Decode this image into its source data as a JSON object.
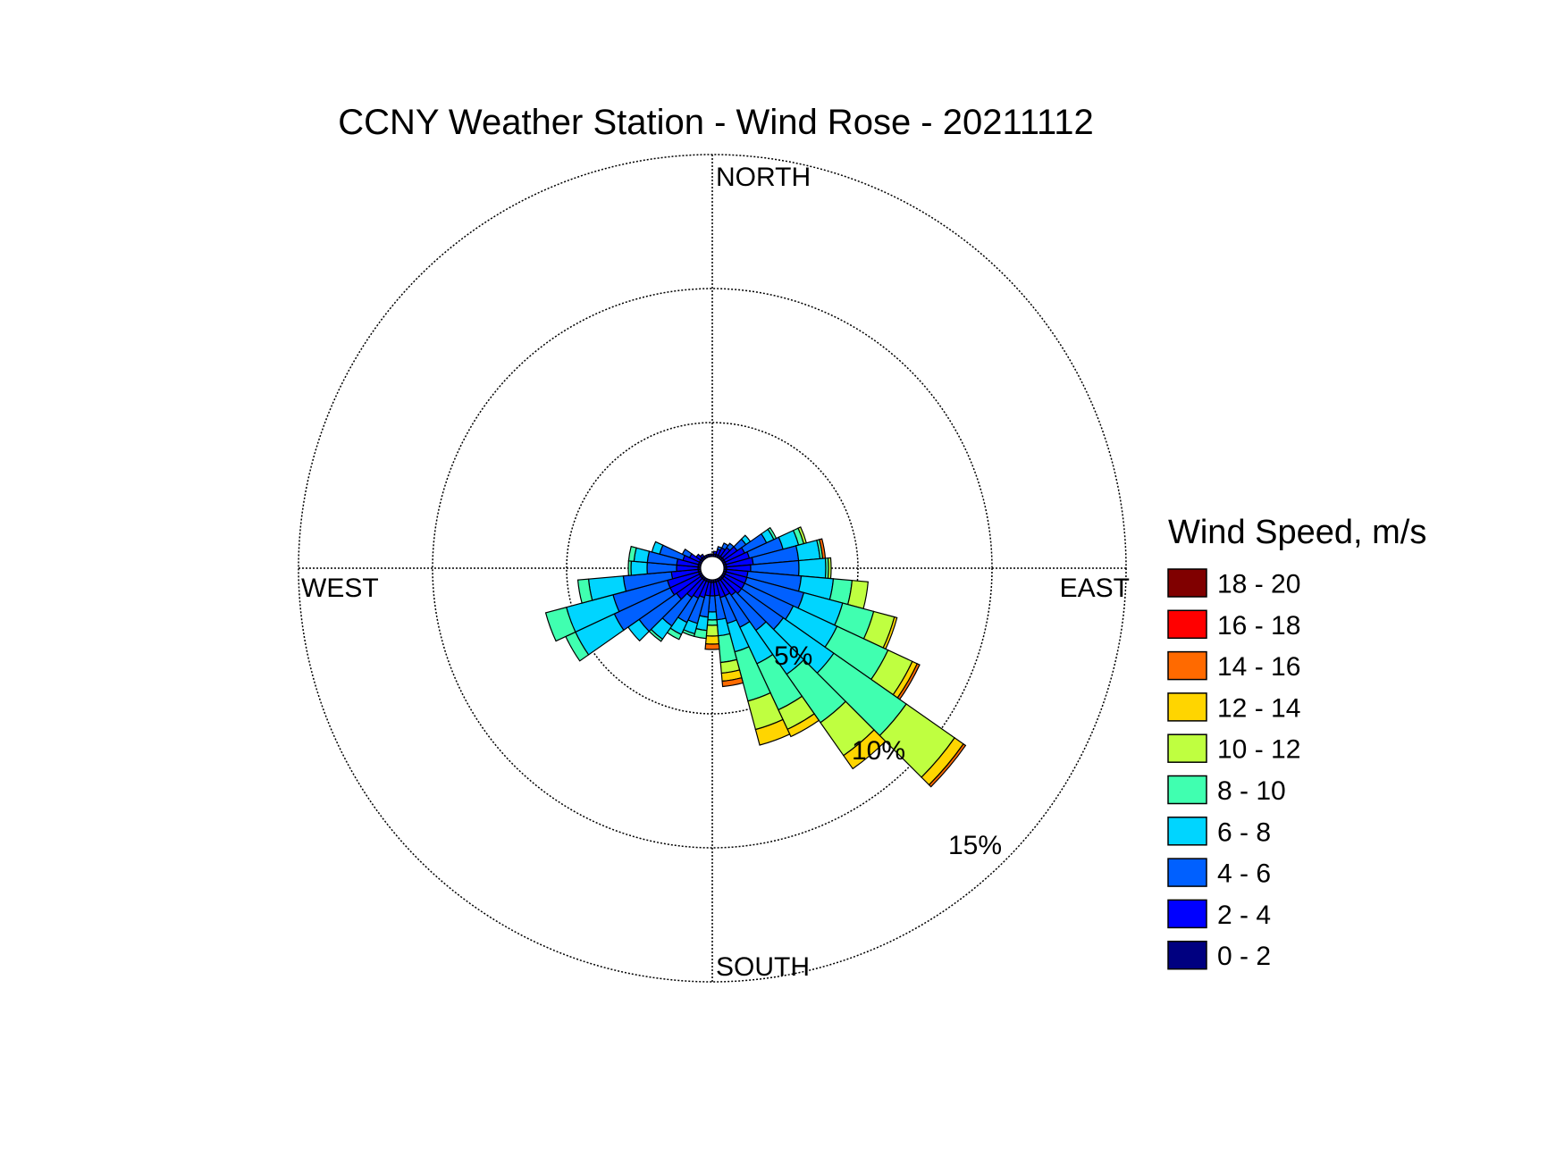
{
  "chart_data": {
    "type": "wind_rose",
    "title": "CCNY Weather Station - Wind Rose - 20211112",
    "directions": {
      "north": "NORTH",
      "south": "SOUTH",
      "east": "EAST",
      "west": "WEST"
    },
    "radial_axis": {
      "unit": "%",
      "ticks": [
        5,
        10,
        15
      ],
      "tick_labels": [
        "5%",
        "10%",
        "15%"
      ],
      "max": 15,
      "grid": true
    },
    "legend": {
      "title": "Wind Speed, m/s",
      "placement": "right",
      "bins": [
        {
          "label": "18 - 20",
          "color": "#800000"
        },
        {
          "label": "16 - 18",
          "color": "#ff0000"
        },
        {
          "label": "14 - 16",
          "color": "#ff6a00"
        },
        {
          "label": "12 - 14",
          "color": "#ffd500"
        },
        {
          "label": "10 - 12",
          "color": "#bfff40"
        },
        {
          "label": "8 - 10",
          "color": "#40ffb0"
        },
        {
          "label": "6 - 8",
          "color": "#00d5ff"
        },
        {
          "label": "4 - 6",
          "color": "#0060ff"
        },
        {
          "label": "2 - 4",
          "color": "#0000ff"
        },
        {
          "label": "0 - 2",
          "color": "#000080"
        }
      ]
    },
    "bin_order_from_center": [
      "0 - 2",
      "2 - 4",
      "4 - 6",
      "6 - 8",
      "8 - 10",
      "10 - 12",
      "12 - 14",
      "14 - 16",
      "16 - 18",
      "18 - 20"
    ],
    "sector_width_deg": 10,
    "sectors": [
      {
        "dir": 0,
        "freqs": [
          0.1
        ]
      },
      {
        "dir": 10,
        "freqs": [
          0.1,
          0.1
        ]
      },
      {
        "dir": 20,
        "freqs": [
          0.1,
          0.2,
          0.1
        ]
      },
      {
        "dir": 30,
        "freqs": [
          0.1,
          0.3,
          0.2
        ]
      },
      {
        "dir": 40,
        "freqs": [
          0.1,
          0.4,
          0.2
        ]
      },
      {
        "dir": 50,
        "freqs": [
          0.1,
          0.6,
          0.4,
          0.2
        ]
      },
      {
        "dir": 60,
        "freqs": [
          0.1,
          0.8,
          0.9,
          0.3,
          0.1
        ]
      },
      {
        "dir": 70,
        "freqs": [
          0.1,
          0.9,
          1.3,
          0.6,
          0.2,
          0.1
        ]
      },
      {
        "dir": 80,
        "freqs": [
          0.1,
          1.0,
          1.7,
          0.8,
          0.1,
          0.0,
          0.0,
          0.1
        ]
      },
      {
        "dir": 90,
        "freqs": [
          0.1,
          0.9,
          1.8,
          1.0,
          0.1,
          0.1
        ]
      },
      {
        "dir": 100,
        "freqs": [
          0.1,
          0.8,
          2.0,
          1.2,
          0.7,
          0.6
        ]
      },
      {
        "dir": 110,
        "freqs": [
          0.1,
          0.8,
          2.2,
          1.5,
          1.2,
          0.8,
          0.1
        ]
      },
      {
        "dir": 120,
        "freqs": [
          0.1,
          0.8,
          2.0,
          1.8,
          2.1,
          1.0,
          0.2,
          0.1
        ]
      },
      {
        "dir": 130,
        "freqs": [
          0.1,
          0.8,
          1.9,
          2.3,
          3.3,
          2.2,
          0.4,
          0.1
        ]
      },
      {
        "dir": 140,
        "freqs": [
          0.1,
          0.7,
          1.6,
          2.0,
          2.2,
          1.5,
          0.6
        ]
      },
      {
        "dir": 150,
        "freqs": [
          0.1,
          0.6,
          1.3,
          1.5,
          1.9,
          0.8,
          0.3
        ]
      },
      {
        "dir": 160,
        "freqs": [
          0.1,
          0.6,
          1.0,
          1.1,
          1.9,
          1.1,
          0.6
        ]
      },
      {
        "dir": 170,
        "freqs": [
          0.1,
          0.5,
          0.9,
          0.6,
          1.0,
          0.4,
          0.3,
          0.2
        ]
      },
      {
        "dir": 180,
        "freqs": [
          0.1,
          0.5,
          0.6,
          0.3,
          0.2,
          0.4,
          0.3,
          0.2
        ]
      },
      {
        "dir": 190,
        "freqs": [
          0.1,
          0.5,
          0.8,
          0.5,
          0.3
        ]
      },
      {
        "dir": 200,
        "freqs": [
          0.1,
          0.6,
          1.0,
          0.4,
          0.1
        ]
      },
      {
        "dir": 210,
        "freqs": [
          0.1,
          0.7,
          1.0,
          0.5,
          0.2
        ]
      },
      {
        "dir": 220,
        "freqs": [
          0.1,
          0.8,
          1.3,
          0.6,
          0.1
        ]
      },
      {
        "dir": 230,
        "freqs": [
          0.1,
          1.1,
          1.7,
          0.5
        ]
      },
      {
        "dir": 240,
        "freqs": [
          0.1,
          1.2,
          2.3,
          1.6,
          0.4
        ]
      },
      {
        "dir": 250,
        "freqs": [
          0.1,
          1.2,
          2.1,
          1.8,
          0.8
        ]
      },
      {
        "dir": 260,
        "freqs": [
          0.1,
          1.0,
          1.8,
          1.3,
          0.4
        ]
      },
      {
        "dir": 270,
        "freqs": [
          0.1,
          0.8,
          1.1,
          0.6,
          0.1
        ]
      },
      {
        "dir": 280,
        "freqs": [
          0.1,
          0.8,
          1.1,
          0.5,
          0.2
        ]
      },
      {
        "dir": 290,
        "freqs": [
          0.1,
          0.6,
          0.9,
          0.3
        ]
      },
      {
        "dir": 300,
        "freqs": [
          0.1,
          0.4,
          0.3
        ]
      },
      {
        "dir": 310,
        "freqs": [
          0.1,
          0.2
        ]
      },
      {
        "dir": 320,
        "freqs": [
          0.1,
          0.1
        ]
      },
      {
        "dir": 330,
        "freqs": [
          0.1
        ]
      },
      {
        "dir": 340,
        "freqs": [
          0.1
        ]
      },
      {
        "dir": 350,
        "freqs": [
          0.1
        ]
      }
    ]
  }
}
